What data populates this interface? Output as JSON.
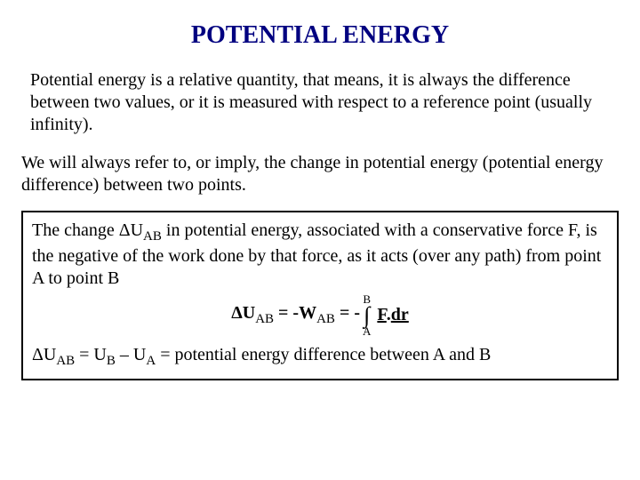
{
  "title": "POTENTIAL ENERGY",
  "para1": "Potential energy is a relative quantity, that means, it is always the difference between two values, or it is measured with respect to a reference point (usually infinity).",
  "para2": "We will always refer to, or imply, the change in potential energy (potential energy difference) between two points.",
  "box": {
    "intro1": "The change ",
    "intro_dU_sym": "ΔU",
    "intro_dU_sub": "AB",
    "intro2": " in potential energy, associated with a conservative force F, is the negative of the work done by that force, as it acts (over any path) from point A to point B",
    "eq": {
      "lhs_sym": "ΔU",
      "lhs_sub": "AB",
      "mid_text": " = -W",
      "mid_sub": "AB",
      "rhs_prefix": " = - ",
      "upper_limit": "B",
      "integral": "∫",
      "lower_limit": "A",
      "F_label": "F",
      "dot": ".",
      "dr_label": "dr"
    },
    "last_dU_sym": "ΔU",
    "last_dU_sub": "AB",
    "last_eq_mid": " = U",
    "last_sub_B": "B",
    "last_minus": " – U",
    "last_sub_A": "A",
    "last_tail": " = potential energy difference between A and B"
  },
  "colors": {
    "title": "#000080",
    "text": "#000000",
    "background": "#ffffff",
    "border": "#000000"
  },
  "fontsizes": {
    "title_pt": 28,
    "body_pt": 20,
    "limit_pt": 13
  }
}
